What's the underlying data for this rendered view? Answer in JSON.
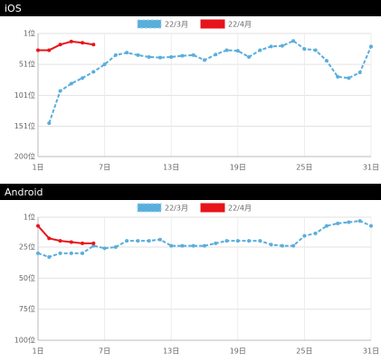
{
  "chart_data": [
    {
      "type": "line",
      "title": "iOS",
      "x": [
        1,
        2,
        3,
        4,
        5,
        6,
        7,
        8,
        9,
        10,
        11,
        12,
        13,
        14,
        15,
        16,
        17,
        18,
        19,
        20,
        21,
        22,
        23,
        24,
        25,
        26,
        27,
        28,
        29,
        30,
        31
      ],
      "series": [
        {
          "name": "22/3月",
          "color": "#5aaedc",
          "dashed": true,
          "values": [
            null,
            146,
            94,
            82,
            73,
            63,
            51,
            36,
            32,
            36,
            39,
            40,
            39,
            37,
            36,
            44,
            35,
            28,
            29,
            39,
            28,
            22,
            21,
            13,
            26,
            28,
            45,
            71,
            73,
            64,
            22
          ]
        },
        {
          "name": "22/4月",
          "color": "#e8141b",
          "dashed": false,
          "values": [
            28,
            28,
            19,
            14,
            16,
            19,
            null,
            null,
            null,
            null,
            null,
            null,
            null,
            null,
            null,
            null,
            null,
            null,
            null,
            null,
            null,
            null,
            null,
            null,
            null,
            null,
            null,
            null,
            null,
            null,
            null
          ]
        }
      ],
      "xlim": [
        1,
        31
      ],
      "xticks": [
        {
          "value": 1,
          "label": "1日"
        },
        {
          "value": 7,
          "label": "7日"
        },
        {
          "value": 13,
          "label": "13日"
        },
        {
          "value": 19,
          "label": "19日"
        },
        {
          "value": 25,
          "label": "25日"
        },
        {
          "value": 31,
          "label": "31日"
        }
      ],
      "ylim": [
        1,
        200
      ],
      "y_inverted": true,
      "yticks": [
        {
          "value": 1,
          "label": "1位"
        },
        {
          "value": 51,
          "label": "51位"
        },
        {
          "value": 101,
          "label": "101位"
        },
        {
          "value": 151,
          "label": "151位"
        },
        {
          "value": 200,
          "label": "200位"
        }
      ],
      "grid": true
    },
    {
      "type": "line",
      "title": "Android",
      "x": [
        1,
        2,
        3,
        4,
        5,
        6,
        7,
        8,
        9,
        10,
        11,
        12,
        13,
        14,
        15,
        16,
        17,
        18,
        19,
        20,
        21,
        22,
        23,
        24,
        25,
        26,
        27,
        28,
        29,
        30,
        31
      ],
      "series": [
        {
          "name": "22/3月",
          "color": "#5aaedc",
          "dashed": true,
          "values": [
            30,
            33,
            30,
            30,
            30,
            24,
            26,
            25,
            20,
            20,
            20,
            19,
            24,
            24,
            24,
            24,
            22,
            20,
            20,
            20,
            20,
            23,
            24,
            24,
            16,
            14,
            8,
            6,
            5,
            4,
            8
          ]
        },
        {
          "name": "22/4月",
          "color": "#e8141b",
          "dashed": false,
          "values": [
            8,
            18,
            20,
            21,
            22,
            22,
            null,
            null,
            null,
            null,
            null,
            null,
            null,
            null,
            null,
            null,
            null,
            null,
            null,
            null,
            null,
            null,
            null,
            null,
            null,
            null,
            null,
            null,
            null,
            null,
            null
          ]
        }
      ],
      "xlim": [
        1,
        31
      ],
      "xticks": [
        {
          "value": 1,
          "label": "1日"
        },
        {
          "value": 7,
          "label": "7日"
        },
        {
          "value": 13,
          "label": "13日"
        },
        {
          "value": 19,
          "label": "19日"
        },
        {
          "value": 25,
          "label": "25日"
        },
        {
          "value": 31,
          "label": "31日"
        }
      ],
      "ylim": [
        1,
        100
      ],
      "y_inverted": true,
      "yticks": [
        {
          "value": 1,
          "label": "1位"
        },
        {
          "value": 25,
          "label": "25位"
        },
        {
          "value": 50,
          "label": "50位"
        },
        {
          "value": 75,
          "label": "75位"
        },
        {
          "value": 100,
          "label": "100位"
        }
      ],
      "grid": true
    }
  ]
}
